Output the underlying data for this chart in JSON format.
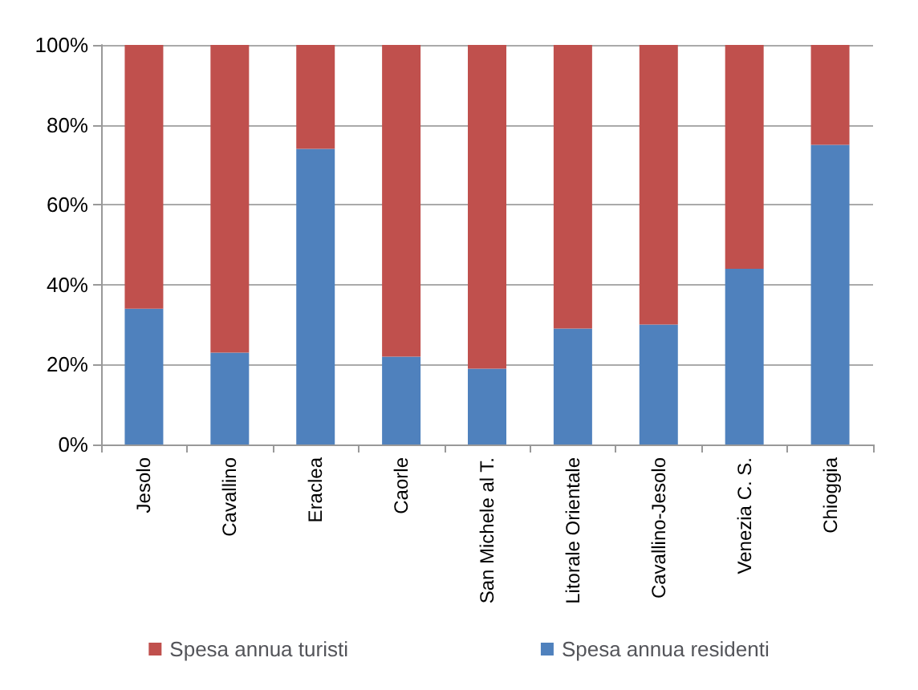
{
  "chart_data": {
    "type": "bar",
    "stacked": true,
    "categories": [
      "Jesolo",
      "Cavallino",
      "Eraclea",
      "Caorle",
      "San Michele al T.",
      "Litorale Orientale",
      "Cavallino-Jesolo",
      "Venezia C. S.",
      "Chioggia"
    ],
    "series": [
      {
        "name": "Spesa annua residenti",
        "color": "#4f81bd",
        "values": [
          34,
          23,
          74,
          22,
          19,
          29,
          30,
          44,
          75
        ]
      },
      {
        "name": "Spesa annua turisti",
        "color": "#c0504d",
        "values": [
          66,
          77,
          26,
          78,
          81,
          71,
          70,
          56,
          25
        ]
      }
    ],
    "ylim": [
      0,
      100
    ],
    "yticks": [
      {
        "value": 0,
        "label": "0%"
      },
      {
        "value": 20,
        "label": "20%"
      },
      {
        "value": 40,
        "label": "40%"
      },
      {
        "value": 60,
        "label": "60%"
      },
      {
        "value": 80,
        "label": "80%"
      },
      {
        "value": 100,
        "label": "100%"
      }
    ],
    "grid": true,
    "legend": "bottom"
  }
}
